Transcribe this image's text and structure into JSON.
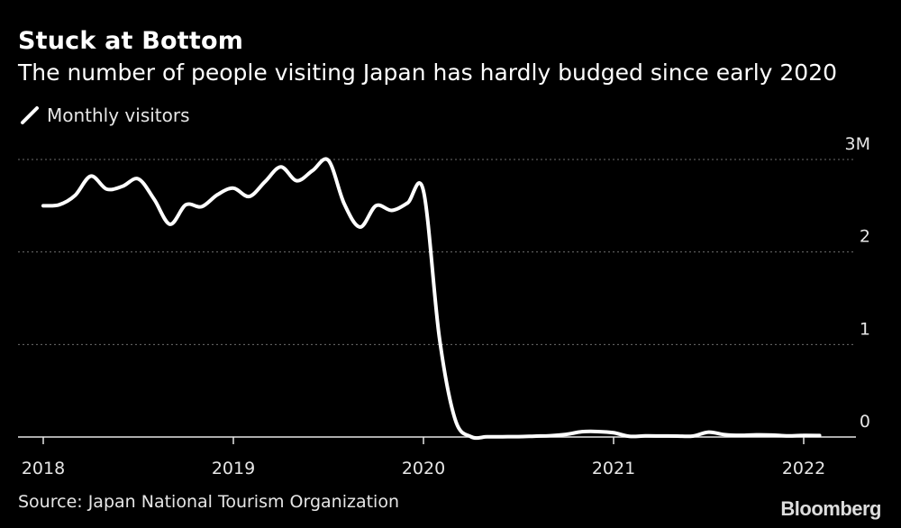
{
  "title": "Stuck at Bottom",
  "subtitle": "The number of people visiting Japan has hardly budged since early 2020",
  "source": "Source: Japan National Tourism Organization",
  "brand": "Bloomberg",
  "colors": {
    "background": "#000000",
    "line": "#ffffff",
    "grid": "#6e6e6e"
  },
  "chart_data": {
    "type": "line",
    "title": "Stuck at Bottom",
    "subtitle": "The number of people visiting Japan has hardly budged since early 2020",
    "ylabel": "",
    "xlabel": "",
    "ylim": [
      0,
      3
    ],
    "yticks": [
      {
        "value": 0,
        "label": "0"
      },
      {
        "value": 1,
        "label": "1"
      },
      {
        "value": 2,
        "label": "2"
      },
      {
        "value": 3,
        "label": "3M"
      }
    ],
    "xticks": [
      {
        "value": "2018-01",
        "label": "2018"
      },
      {
        "value": "2019-01",
        "label": "2019"
      },
      {
        "value": "2020-01",
        "label": "2020"
      },
      {
        "value": "2021-01",
        "label": "2021"
      },
      {
        "value": "2022-01",
        "label": "2022"
      }
    ],
    "grid": true,
    "legend_position": "top-left",
    "series": [
      {
        "name": "Monthly visitors",
        "x": [
          "2018-01",
          "2018-02",
          "2018-03",
          "2018-04",
          "2018-05",
          "2018-06",
          "2018-07",
          "2018-08",
          "2018-09",
          "2018-10",
          "2018-11",
          "2018-12",
          "2019-01",
          "2019-02",
          "2019-03",
          "2019-04",
          "2019-05",
          "2019-06",
          "2019-07",
          "2019-08",
          "2019-09",
          "2019-10",
          "2019-11",
          "2019-12",
          "2020-01",
          "2020-02",
          "2020-03",
          "2020-04",
          "2020-05",
          "2020-06",
          "2020-07",
          "2020-08",
          "2020-09",
          "2020-10",
          "2020-11",
          "2020-12",
          "2021-01",
          "2021-02",
          "2021-03",
          "2021-04",
          "2021-05",
          "2021-06",
          "2021-07",
          "2021-08",
          "2021-09",
          "2021-10",
          "2021-11",
          "2021-12",
          "2022-01",
          "2022-02"
        ],
        "values": [
          2.5,
          2.51,
          2.61,
          2.82,
          2.68,
          2.71,
          2.79,
          2.57,
          2.3,
          2.51,
          2.49,
          2.62,
          2.69,
          2.6,
          2.76,
          2.92,
          2.77,
          2.88,
          2.99,
          2.52,
          2.27,
          2.5,
          2.45,
          2.53,
          2.66,
          1.08,
          0.19,
          0.003,
          0.002,
          0.003,
          0.004,
          0.009,
          0.014,
          0.028,
          0.057,
          0.059,
          0.046,
          0.007,
          0.012,
          0.011,
          0.01,
          0.01,
          0.052,
          0.026,
          0.018,
          0.023,
          0.021,
          0.012,
          0.017,
          0.016
        ]
      }
    ]
  }
}
